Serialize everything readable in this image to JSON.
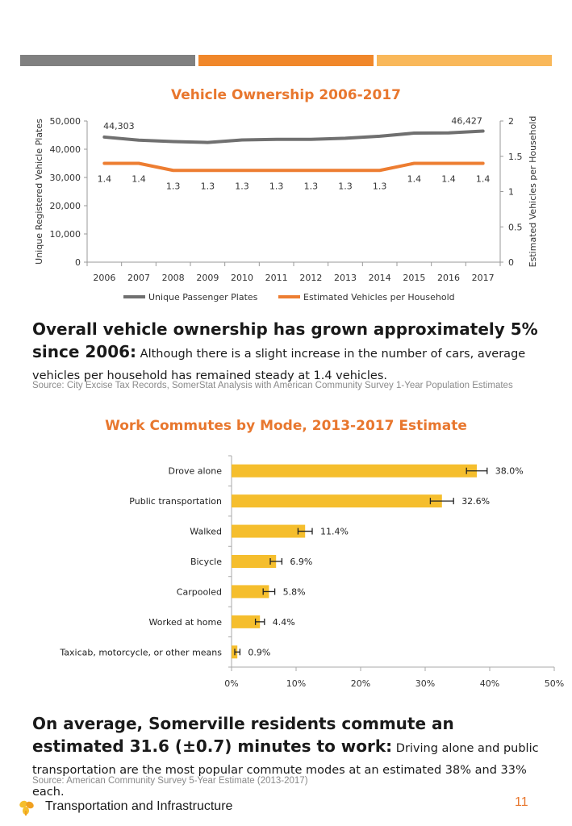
{
  "header_bars": [
    {
      "color": "#808080"
    },
    {
      "color": "#f0872a"
    },
    {
      "color": "#f9b85a"
    }
  ],
  "chart1": {
    "title": "Vehicle Ownership 2006-2017",
    "ylabel_left": "Unique Registered Vehicle Plates",
    "ylabel_right": "Estimated Vehicles per Household",
    "left_ticks": [
      "0",
      "10,000",
      "20,000",
      "30,000",
      "40,000",
      "50,000"
    ],
    "right_ticks": [
      "0",
      "0.5",
      "1",
      "1.5",
      "2"
    ],
    "legend": [
      "Unique Passenger Plates",
      "Estimated Vehicles per Household"
    ],
    "plates_first_label": "44,303",
    "plates_last_label": "46,427",
    "household_labels": [
      "1.4",
      "1.4",
      "1.3",
      "1.3",
      "1.3",
      "1.3",
      "1.3",
      "1.3",
      "1.3",
      "1.4",
      "1.4",
      "1.4"
    ]
  },
  "chart_data": [
    {
      "type": "line",
      "title": "Vehicle Ownership 2006-2017",
      "x": [
        "2006",
        "2007",
        "2008",
        "2009",
        "2010",
        "2011",
        "2012",
        "2013",
        "2014",
        "2015",
        "2016",
        "2017"
      ],
      "series": [
        {
          "name": "Unique Passenger Plates",
          "axis": "left",
          "color": "#707070",
          "values": [
            44303,
            43200,
            42700,
            42400,
            43300,
            43500,
            43500,
            43900,
            44600,
            45700,
            45800,
            46427
          ]
        },
        {
          "name": "Estimated Vehicles per Household",
          "axis": "right",
          "color": "#ed7d31",
          "values": [
            1.4,
            1.4,
            1.3,
            1.3,
            1.3,
            1.3,
            1.3,
            1.3,
            1.3,
            1.4,
            1.4,
            1.4
          ]
        }
      ],
      "ylim_left": [
        0,
        50000
      ],
      "ylim_right": [
        0,
        2
      ],
      "ylabel_left": "Unique Registered Vehicle Plates",
      "ylabel_right": "Estimated Vehicles per Household",
      "legend_position": "bottom",
      "grid": false
    },
    {
      "type": "bar",
      "orientation": "horizontal",
      "title": "Work Commutes by Mode, 2013-2017 Estimate",
      "categories": [
        "Drove alone",
        "Public transportation",
        "Walked",
        "Bicycle",
        "Carpooled",
        "Worked at home",
        "Taxicab, motorcycle, or other means"
      ],
      "values": [
        38.0,
        32.6,
        11.4,
        6.9,
        5.8,
        4.4,
        0.9
      ],
      "value_labels": [
        "38.0%",
        "32.6%",
        "11.4%",
        "6.9%",
        "5.8%",
        "4.4%",
        "0.9%"
      ],
      "error": [
        1.6,
        1.8,
        1.1,
        0.9,
        0.9,
        0.7,
        0.4
      ],
      "xlim": [
        0,
        50
      ],
      "x_ticks": [
        "0%",
        "10%",
        "20%",
        "30%",
        "40%",
        "50%"
      ],
      "color": "#f5be2d",
      "grid": false
    }
  ],
  "chart2": {
    "title": "Work Commutes by Mode, 2013-2017 Estimate"
  },
  "text1": {
    "headline": "Overall vehicle ownership has grown approximately 5% since 2006:",
    "body": " Although there is a slight increase in the number of cars, average vehicles per household has remained steady at 1.4 vehicles.",
    "source": "Source: City Excise Tax Records, SomerStat Analysis with American Community Survey 1-Year Population Estimates"
  },
  "text2": {
    "headline": "On average, Somerville residents commute an estimated 31.6 (±0.7) minutes to work:",
    "body": " Driving alone and public transportation are the most popular commute modes at an estimated 38% and 33% each.",
    "source": "Source: American Community Survey 5-Year Estimate (2013-2017)"
  },
  "footer": {
    "section": "Transportation and Infrastructure",
    "page": "11",
    "icon": "flower-icon"
  }
}
